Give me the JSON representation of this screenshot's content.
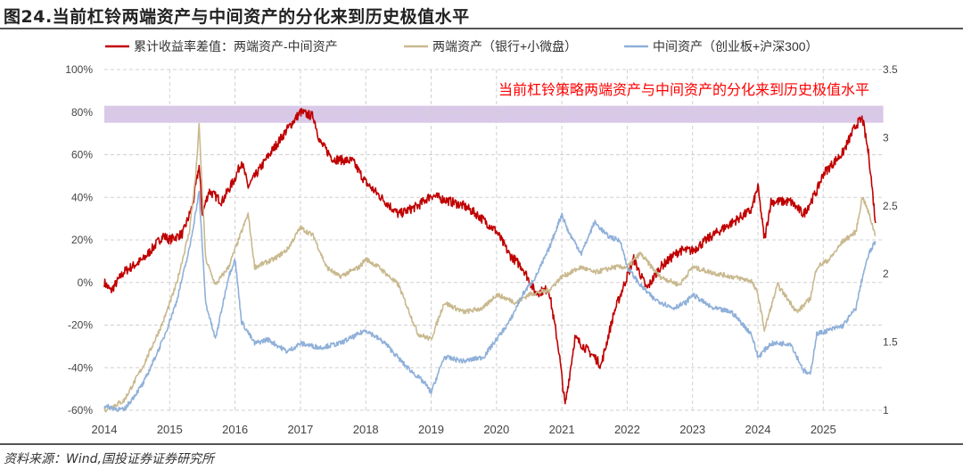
{
  "header": {
    "title": "图24.当前杠铃两端资产与中间资产的分化来到历史极值水平"
  },
  "footer": {
    "source": "资料来源：Wind,国投证券证券研究所"
  },
  "chart_data": {
    "type": "line",
    "title": "",
    "annotation": "当前杠铃策略两端资产与中间资产的分化来到历史极值水平",
    "highlight_band": {
      "axis": "left",
      "range": [
        75,
        83
      ],
      "color": "#d9c8e8"
    },
    "x_ticks": [
      "2014",
      "2015",
      "2016",
      "2017",
      "2018",
      "2019",
      "2020",
      "2021",
      "2022",
      "2023",
      "2024",
      "2025"
    ],
    "xlim": [
      2014,
      2025.85
    ],
    "y_left": {
      "lim": [
        -60,
        100
      ],
      "ticks": [
        "-60%",
        "-40%",
        "-20%",
        "0%",
        "20%",
        "40%",
        "60%",
        "80%",
        "100%"
      ]
    },
    "y_right": {
      "lim": [
        1,
        3.5
      ],
      "ticks": [
        "1",
        "1.5",
        "2",
        "2.5",
        "3",
        "3.5"
      ]
    },
    "grid": true,
    "legend_position": "top",
    "series": [
      {
        "name": "累计收益率差值：两端资产-中间资产",
        "axis": "left",
        "color": "#c00000",
        "x": [
          2014.0,
          2014.1,
          2014.3,
          2014.6,
          2014.9,
          2015.0,
          2015.2,
          2015.35,
          2015.45,
          2015.5,
          2015.6,
          2015.8,
          2016.0,
          2016.1,
          2016.2,
          2016.5,
          2016.8,
          2017.0,
          2017.2,
          2017.3,
          2017.5,
          2017.8,
          2018.0,
          2018.3,
          2018.5,
          2018.8,
          2019.0,
          2019.3,
          2019.5,
          2019.7,
          2020.0,
          2020.2,
          2020.4,
          2020.6,
          2020.8,
          2020.95,
          2021.05,
          2021.2,
          2021.5,
          2021.6,
          2021.8,
          2022.0,
          2022.1,
          2022.3,
          2022.5,
          2022.8,
          2023.0,
          2023.3,
          2023.6,
          2023.9,
          2024.0,
          2024.1,
          2024.2,
          2024.5,
          2024.7,
          2024.9,
          2025.0,
          2025.3,
          2025.5,
          2025.6,
          2025.7,
          2025.8
        ],
        "values": [
          0,
          -4,
          5,
          11,
          22,
          20,
          23,
          36,
          55,
          32,
          43,
          38,
          49,
          57,
          45,
          59,
          72,
          80,
          78,
          66,
          58,
          57,
          47,
          38,
          32,
          36,
          41,
          38,
          36,
          32,
          24,
          13,
          7,
          -5,
          -3,
          -31,
          -58,
          -26,
          -35,
          -39,
          -14,
          3,
          11,
          -3,
          7,
          15,
          15,
          22,
          28,
          34,
          45,
          20,
          38,
          38,
          32,
          43,
          51,
          61,
          74,
          77,
          59,
          28
        ]
      },
      {
        "name": "两端资产（银行+小微盘）",
        "axis": "right",
        "color": "#c9b98f",
        "x": [
          2014.0,
          2014.3,
          2014.6,
          2014.9,
          2015.1,
          2015.3,
          2015.4,
          2015.45,
          2015.55,
          2015.7,
          2015.9,
          2016.0,
          2016.2,
          2016.3,
          2016.6,
          2016.8,
          2017.0,
          2017.2,
          2017.4,
          2017.6,
          2017.9,
          2018.0,
          2018.2,
          2018.5,
          2018.8,
          2019.0,
          2019.2,
          2019.5,
          2019.8,
          2020.0,
          2020.3,
          2020.5,
          2020.8,
          2021.0,
          2021.3,
          2021.5,
          2021.8,
          2022.0,
          2022.2,
          2022.5,
          2022.8,
          2023.0,
          2023.3,
          2023.6,
          2023.9,
          2024.0,
          2024.1,
          2024.3,
          2024.6,
          2024.8,
          2024.9,
          2025.1,
          2025.3,
          2025.5,
          2025.6,
          2025.7,
          2025.8
        ],
        "values": [
          1.0,
          1.07,
          1.33,
          1.65,
          1.92,
          2.31,
          2.73,
          3.09,
          2.11,
          1.92,
          2.05,
          2.18,
          2.44,
          2.05,
          2.11,
          2.18,
          2.34,
          2.28,
          2.05,
          1.98,
          2.05,
          2.11,
          2.05,
          1.92,
          1.56,
          1.52,
          1.79,
          1.72,
          1.75,
          1.85,
          1.79,
          1.85,
          1.88,
          1.98,
          2.05,
          2.01,
          2.05,
          2.05,
          2.15,
          1.98,
          1.92,
          2.05,
          2.01,
          1.98,
          1.95,
          1.85,
          1.59,
          1.92,
          1.72,
          1.82,
          2.05,
          2.11,
          2.24,
          2.31,
          2.57,
          2.44,
          2.28
        ]
      },
      {
        "name": "中间资产（创业板+沪深300）",
        "axis": "right",
        "color": "#8fb0d9",
        "x": [
          2014.0,
          2014.3,
          2014.6,
          2014.9,
          2015.1,
          2015.3,
          2015.45,
          2015.55,
          2015.7,
          2015.9,
          2016.0,
          2016.1,
          2016.3,
          2016.5,
          2016.8,
          2017.0,
          2017.3,
          2017.6,
          2017.9,
          2018.0,
          2018.3,
          2018.6,
          2018.9,
          2019.0,
          2019.2,
          2019.5,
          2019.8,
          2020.0,
          2020.2,
          2020.4,
          2020.6,
          2020.8,
          2021.0,
          2021.1,
          2021.3,
          2021.5,
          2021.7,
          2021.9,
          2022.0,
          2022.2,
          2022.4,
          2022.7,
          2022.9,
          2023.0,
          2023.3,
          2023.6,
          2023.9,
          2024.0,
          2024.2,
          2024.5,
          2024.7,
          2024.8,
          2024.9,
          2025.1,
          2025.3,
          2025.5,
          2025.6,
          2025.7,
          2025.8
        ],
        "values": [
          1.03,
          1.0,
          1.2,
          1.52,
          1.79,
          2.18,
          2.6,
          1.79,
          1.52,
          1.98,
          2.11,
          1.65,
          1.49,
          1.52,
          1.43,
          1.49,
          1.46,
          1.49,
          1.56,
          1.59,
          1.49,
          1.33,
          1.2,
          1.13,
          1.39,
          1.36,
          1.39,
          1.52,
          1.65,
          1.85,
          1.98,
          2.18,
          2.44,
          2.31,
          2.15,
          2.38,
          2.28,
          2.24,
          2.05,
          1.92,
          1.82,
          1.75,
          1.79,
          1.85,
          1.75,
          1.72,
          1.56,
          1.39,
          1.49,
          1.49,
          1.29,
          1.26,
          1.56,
          1.59,
          1.62,
          1.75,
          1.98,
          2.15,
          2.24
        ]
      }
    ]
  }
}
